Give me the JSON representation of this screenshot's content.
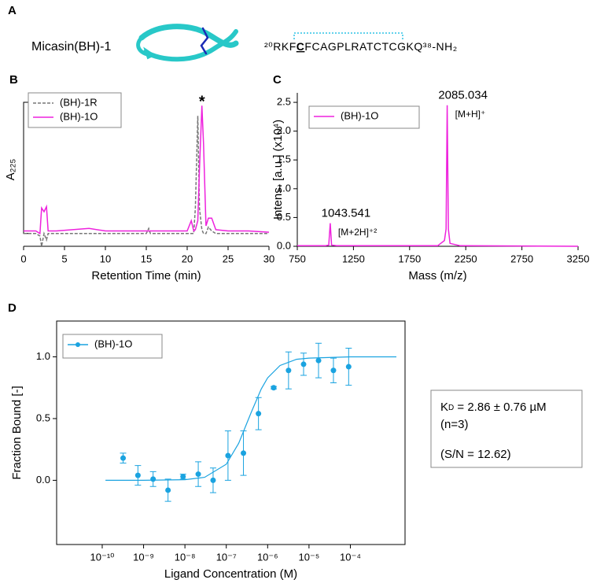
{
  "panel_a": {
    "label": "A",
    "name": "Micasin(BH)-1",
    "sequence": [
      "²⁰RKF",
      "C",
      "FCAGPLRATCTCGKQ",
      "³⁸",
      "-NH₂"
    ],
    "color": "#2ec4e6"
  },
  "chart_data": [
    {
      "type": "line",
      "panel": "B",
      "xlabel": "Retention Time (min)",
      "ylabel": [
        "A",
        "₂₂₅"
      ],
      "x": [
        0,
        1.5,
        2,
        2.2,
        2.5,
        2.8,
        3,
        4,
        8,
        10,
        15,
        15.3,
        15.5,
        20,
        20.5,
        20.8,
        21,
        21.3,
        21.5,
        21.8,
        22,
        22.3,
        22.6,
        23,
        23.5,
        25,
        27.5,
        30
      ],
      "series": [
        {
          "name": "(BH)-1R",
          "color": "#777777",
          "dash": true,
          "values": [
            0,
            0,
            -0.02,
            -0.1,
            0,
            -0.05,
            0,
            0,
            0,
            0,
            0,
            0.04,
            0,
            0,
            0,
            0,
            0.2,
            0.92,
            0.2,
            0.03,
            0,
            0,
            0.05,
            0.02,
            0,
            0,
            0,
            0
          ]
        },
        {
          "name": "(BH)-1O",
          "color": "#ee22dd",
          "dash": false,
          "values": [
            0.02,
            0.02,
            0,
            0.2,
            0.17,
            0.21,
            0.02,
            0.02,
            0.04,
            0.02,
            0.02,
            0.02,
            0.02,
            0.02,
            0.1,
            0.02,
            0.03,
            0.1,
            0.5,
            1.0,
            0.7,
            0.06,
            0.12,
            0.12,
            0.03,
            0.02,
            0.02,
            0.01
          ]
        }
      ],
      "xlim": [
        0,
        30
      ],
      "xticks": [
        0,
        5,
        10,
        15,
        20,
        25,
        30
      ],
      "ylim": [
        -0.1,
        1.1
      ],
      "legend": "upper left",
      "annotations": [
        {
          "text": "*",
          "color": "#e8232b"
        }
      ]
    },
    {
      "type": "line",
      "panel": "C",
      "xlabel": "Mass (m/z)",
      "ylabel": [
        "Intens. [a.u.] (x10⁴)"
      ],
      "x": [
        750,
        1000,
        1030,
        1043.541,
        1055,
        1100,
        2000,
        2060,
        2075,
        2085.034,
        2095,
        2110,
        2200,
        3250
      ],
      "series": [
        {
          "name": "(BH)-1O",
          "color": "#ee22dd",
          "dash": false,
          "values": [
            0.01,
            0.01,
            0.02,
            0.4,
            0.02,
            0.01,
            0.01,
            0.1,
            0.3,
            2.45,
            0.3,
            0.05,
            0.01,
            0
          ]
        }
      ],
      "xlim": [
        750,
        3250
      ],
      "xticks": [
        750,
        1250,
        1750,
        2250,
        2750,
        3250
      ],
      "ylim": [
        0,
        2.665
      ],
      "yticks": [
        {
          "value": 0,
          "label": "0.0"
        },
        0.5,
        {
          "value": 1,
          "label": "1.0"
        },
        1.5,
        {
          "value": 2,
          "label": "2.0"
        },
        2.5
      ],
      "legend": "upper left",
      "peaks": [
        {
          "x": 1043.541,
          "ion": "[M+2H]⁺²"
        },
        {
          "x": 2085.034,
          "ion": "[M+H]⁺"
        }
      ]
    },
    {
      "type": "scatter",
      "panel": "D",
      "xlabel": "Ligand Concentration (M)",
      "ylabel": [
        "Fraction Bound [-]"
      ],
      "xscale": "log",
      "xlim": [
        7.9e-12,
        0.0021
      ],
      "ylim": [
        -0.52,
        1.29
      ],
      "xticks": [
        {
          "value": 1e-10,
          "label": "10⁻¹⁰"
        },
        {
          "value": 1e-09,
          "label": "10⁻⁹"
        },
        {
          "value": 1e-08,
          "label": "10⁻⁸"
        },
        {
          "value": 1e-07,
          "label": "10⁻⁷"
        },
        {
          "value": 1e-06,
          "label": "10⁻⁶"
        },
        {
          "value": 1e-05,
          "label": "10⁻⁵"
        },
        {
          "value": 0.0001,
          "label": "10⁻⁴"
        }
      ],
      "yticks": [
        {
          "value": 0,
          "label": "0.0"
        },
        0.5,
        {
          "value": 1,
          "label": "1.0"
        }
      ],
      "legend": "upper left",
      "series": [
        {
          "name": "(BH)-1O",
          "color": "#1aa3e0",
          "marker": "circle",
          "x": [
            3.2e-10,
            7.3e-10,
            1.7e-09,
            3.9e-09,
            9e-09,
            2.1e-08,
            4.8e-08,
            1.1e-07,
            2.6e-07,
            6e-07,
            1.4e-06,
            3.2e-06,
            7.4e-06,
            1.7e-05,
            3.9e-05,
            9.1e-05
          ],
          "values": [
            0.18,
            0.04,
            0.01,
            -0.08,
            0.03,
            0.05,
            0,
            0.2,
            0.22,
            0.54,
            0.75,
            0.89,
            0.94,
            0.97,
            0.89,
            0.92
          ],
          "errors": [
            0.04,
            0.08,
            0.06,
            0.09,
            0.02,
            0.1,
            0.1,
            0.2,
            0.18,
            0.13,
            0.01,
            0.15,
            0.09,
            0.14,
            0.1,
            0.15
          ]
        },
        {
          "color": "#1aa3e0",
          "marker": "none",
          "x": [
            1.2e-10,
            1e-09,
            1e-08,
            3e-08,
            1e-07,
            2e-07,
            4e-07,
            7e-07,
            1e-06,
            2e-06,
            5e-06,
            1e-05,
            0.0001,
            0.0013
          ],
          "values": [
            0,
            0.0002,
            0.005,
            0.024,
            0.13,
            0.3,
            0.55,
            0.74,
            0.83,
            0.93,
            0.98,
            0.99,
            1.0,
            1.0
          ]
        }
      ],
      "note": [
        {
          "parts": [
            "K",
            "D",
            " = 2.86 ± 0.76 µM"
          ]
        },
        {
          "parts": [
            "(n=3)"
          ]
        },
        {
          "parts": [
            "(S/N = 12.62)"
          ]
        }
      ]
    }
  ]
}
